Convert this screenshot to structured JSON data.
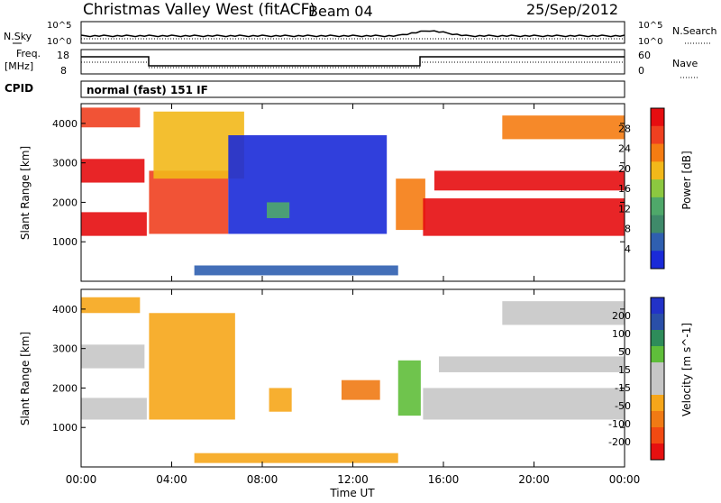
{
  "header": {
    "title": "Christmas Valley West (fitACF)",
    "beam": "Beam 04",
    "date": "25/Sep/2012"
  },
  "top_panel": {
    "left_label": "N.Sky",
    "left_ticks": [
      "10^5",
      "10^0"
    ],
    "right_ticks": [
      "10^5",
      "10^0"
    ],
    "right_label": "N.Search",
    "freq_label_1": "Freq.",
    "freq_label_2": "[MHz]",
    "freq_ticks": [
      "18",
      "8"
    ],
    "nave_ticks": [
      "60",
      "0"
    ],
    "nave_label": "Nave",
    "cpid_label": "CPID",
    "cpid_value": "normal (fast) 151 IF"
  },
  "colors": {
    "power": [
      "#1a2ad8",
      "#2f5fb0",
      "#3f8a6a",
      "#4fa86a",
      "#8cc840",
      "#f2b81a",
      "#f57c12",
      "#ef4020",
      "#e60d10"
    ],
    "velocity": [
      "#e61010",
      "#f24a12",
      "#f07a14",
      "#f6a61a",
      "#c6c6c6",
      "#c6c6c6",
      "#5fbe3a",
      "#2e8c5a",
      "#2a4fa8",
      "#2232c8"
    ]
  },
  "chart_data": [
    {
      "type": "heatmap",
      "name": "power",
      "xlabel": "Time UT",
      "ylabel": "Slant Range [km]",
      "x_ticks": [
        "00:00",
        "04:00",
        "08:00",
        "12:00",
        "16:00",
        "20:00",
        "00:00"
      ],
      "x_hours": [
        0,
        4,
        8,
        12,
        16,
        20,
        24
      ],
      "ylim": [
        0,
        4500
      ],
      "y_ticks": [
        1000,
        2000,
        3000,
        4000
      ],
      "colorbar_label": "Power [dB]",
      "colorbar_ticks": [
        "4",
        "8",
        "12",
        "16",
        "20",
        "24",
        "28"
      ],
      "bands": [
        {
          "t0": 0.0,
          "t1": 2.6,
          "r0": 3900,
          "r1": 4400,
          "level": 7
        },
        {
          "t0": 0.0,
          "t1": 2.8,
          "r0": 2500,
          "r1": 3100,
          "level": 8
        },
        {
          "t0": 0.0,
          "t1": 2.9,
          "r0": 1150,
          "r1": 1750,
          "level": 8
        },
        {
          "t0": 3.0,
          "t1": 6.5,
          "r0": 1200,
          "r1": 2800,
          "level": 7
        },
        {
          "t0": 3.2,
          "t1": 7.2,
          "r0": 2600,
          "r1": 4300,
          "level": 5
        },
        {
          "t0": 6.5,
          "t1": 13.5,
          "r0": 1200,
          "r1": 3700,
          "level": 0
        },
        {
          "t0": 8.2,
          "t1": 9.2,
          "r0": 1600,
          "r1": 2000,
          "level": 3
        },
        {
          "t0": 13.9,
          "t1": 15.2,
          "r0": 1300,
          "r1": 2600,
          "level": 6
        },
        {
          "t0": 15.1,
          "t1": 24.0,
          "r0": 1150,
          "r1": 2100,
          "level": 8
        },
        {
          "t0": 15.6,
          "t1": 24.0,
          "r0": 2300,
          "r1": 2800,
          "level": 8
        },
        {
          "t0": 18.6,
          "t1": 24.0,
          "r0": 3600,
          "r1": 4200,
          "level": 6
        },
        {
          "t0": 5.0,
          "t1": 14.0,
          "r0": 150,
          "r1": 400,
          "level": 1
        }
      ]
    },
    {
      "type": "heatmap",
      "name": "velocity",
      "xlabel": "Time UT",
      "ylabel": "Slant Range [km]",
      "x_ticks": [
        "00:00",
        "04:00",
        "08:00",
        "12:00",
        "16:00",
        "20:00",
        "00:00"
      ],
      "x_hours": [
        0,
        4,
        8,
        12,
        16,
        20,
        24
      ],
      "ylim": [
        0,
        4500
      ],
      "y_ticks": [
        1000,
        2000,
        3000,
        4000
      ],
      "colorbar_label": "Velocity [m s^-1]",
      "colorbar_ticks": [
        "200",
        "100",
        "50",
        "15",
        "-15",
        "-50",
        "-100",
        "-200"
      ],
      "bands": [
        {
          "t0": 0.0,
          "t1": 2.6,
          "r0": 3900,
          "r1": 4300,
          "level": 3
        },
        {
          "t0": 0.0,
          "t1": 2.8,
          "r0": 2500,
          "r1": 3100,
          "level": 4
        },
        {
          "t0": 0.0,
          "t1": 2.9,
          "r0": 1200,
          "r1": 1750,
          "level": 4
        },
        {
          "t0": 3.0,
          "t1": 6.8,
          "r0": 1200,
          "r1": 3900,
          "level": 3
        },
        {
          "t0": 8.3,
          "t1": 9.3,
          "r0": 1400,
          "r1": 2000,
          "level": 3
        },
        {
          "t0": 11.5,
          "t1": 13.2,
          "r0": 1700,
          "r1": 2200,
          "level": 2
        },
        {
          "t0": 14.0,
          "t1": 15.0,
          "r0": 1300,
          "r1": 2700,
          "level": 6
        },
        {
          "t0": 15.1,
          "t1": 24.0,
          "r0": 1200,
          "r1": 2000,
          "level": 4
        },
        {
          "t0": 15.8,
          "t1": 24.0,
          "r0": 2400,
          "r1": 2800,
          "level": 4
        },
        {
          "t0": 18.6,
          "t1": 24.0,
          "r0": 3600,
          "r1": 4200,
          "level": 4
        },
        {
          "t0": 5.0,
          "t1": 14.0,
          "r0": 100,
          "r1": 350,
          "level": 3
        }
      ]
    }
  ]
}
